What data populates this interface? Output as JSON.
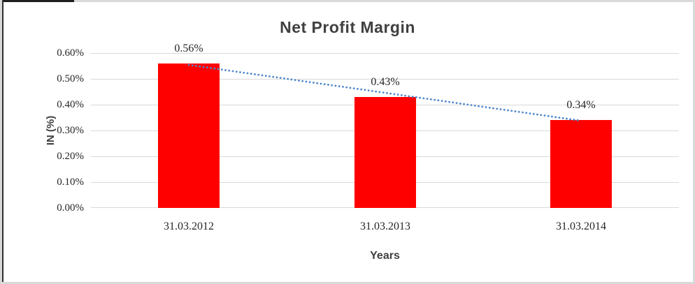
{
  "chart_data": {
    "type": "bar",
    "title": "Net Profit Margin",
    "xlabel": "Years",
    "ylabel": "IN (%)",
    "categories": [
      "31.03.2012",
      "31.03.2013",
      "31.03.2014"
    ],
    "values": [
      0.56,
      0.43,
      0.34
    ],
    "data_labels": [
      "0.56%",
      "0.43%",
      "0.34%"
    ],
    "y_ticks": [
      "0.60%",
      "0.50%",
      "0.40%",
      "0.30%",
      "0.20%",
      "0.10%",
      "0.00%"
    ],
    "ylim": [
      0,
      0.6
    ],
    "grid": true,
    "legend": false,
    "bar_color": "#FF0000",
    "gridline_color": "#D9D9D9",
    "text_color": "#262626",
    "title_color": "#404040",
    "trendline": {
      "type": "linear",
      "style": "dotted",
      "color": "#4F88CB"
    }
  }
}
